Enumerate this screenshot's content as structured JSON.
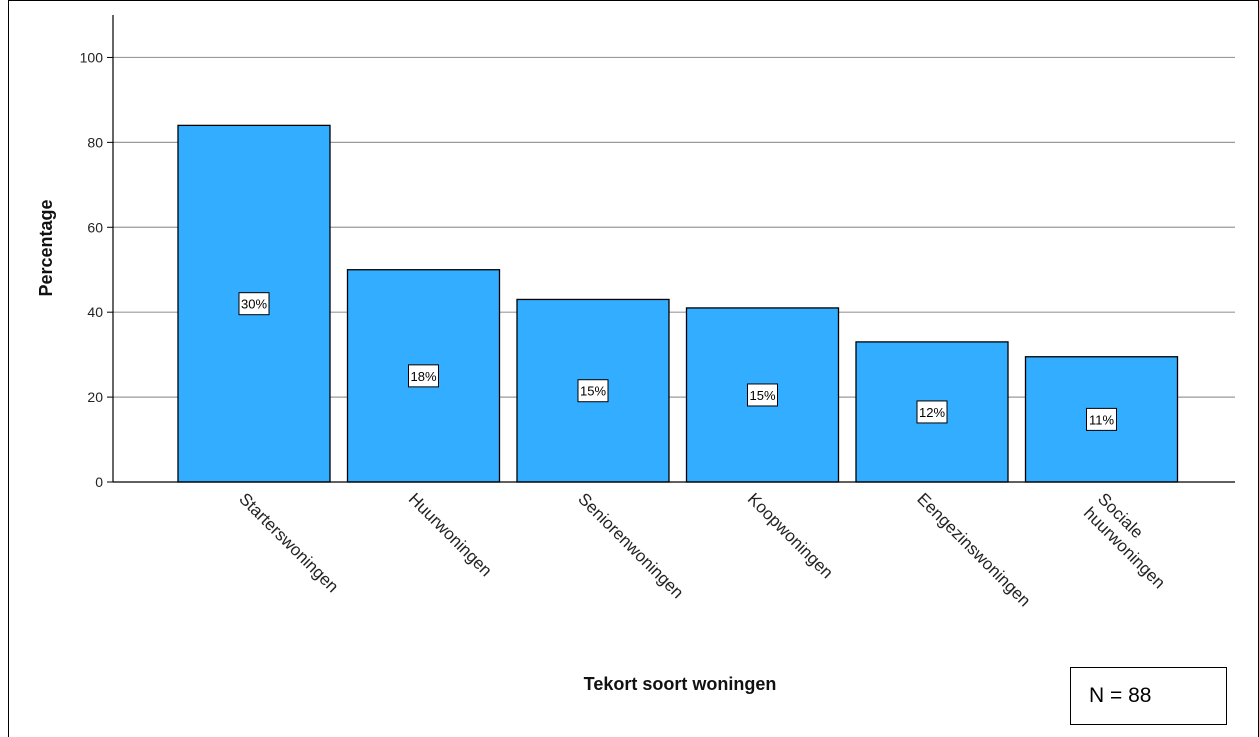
{
  "chart_data": {
    "type": "bar",
    "categories": [
      "Starterswoningen",
      "Huurwoningen",
      "Seniorenwoningen",
      "Koopwoningen",
      "Eengezinswoningen",
      "Sociale huurwoningen"
    ],
    "category_lines": [
      [
        "Starterswoningen"
      ],
      [
        "Huurwoningen"
      ],
      [
        "Seniorenwoningen"
      ],
      [
        "Koopwoningen"
      ],
      [
        "Eengezinswoningen"
      ],
      [
        "Sociale",
        "huurwoningen"
      ]
    ],
    "values": [
      84,
      50,
      43,
      41,
      33,
      29.5
    ],
    "data_labels": [
      "30%",
      "18%",
      "15%",
      "15%",
      "12%",
      "11%"
    ],
    "xlabel": "Tekort soort woningen",
    "ylabel": "Percentage",
    "ylim": [
      0,
      110
    ],
    "yticks": [
      0,
      20,
      40,
      60,
      80,
      100
    ],
    "grid": true,
    "bar_color": "#33adff",
    "note": "N = 88"
  }
}
